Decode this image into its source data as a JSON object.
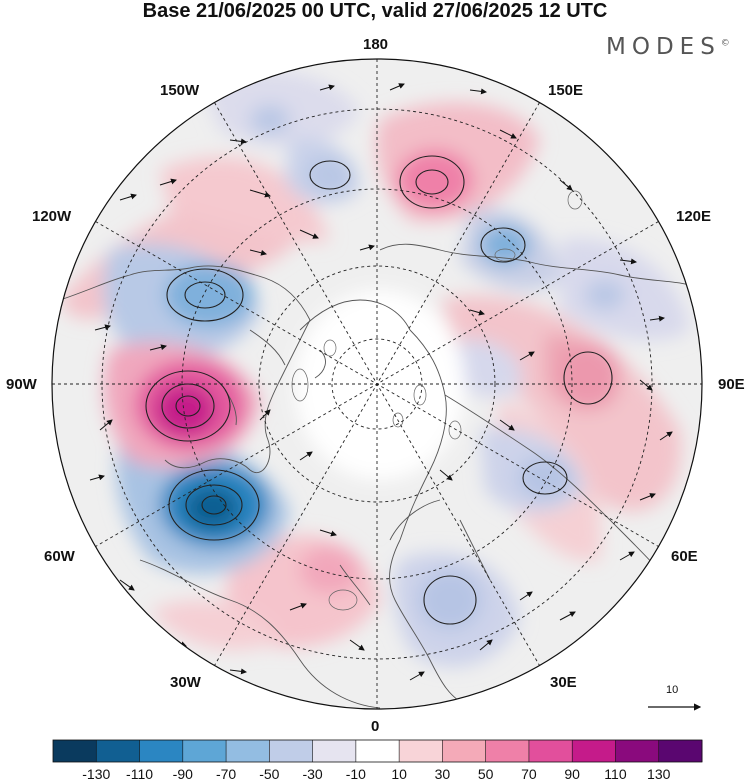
{
  "title": "Base 21/06/2025 00 UTC, valid 27/06/2025 12 UTC",
  "brand": {
    "name": "MODES",
    "mark": "©"
  },
  "longitude_labels": {
    "top": "180",
    "bottom": "0",
    "left": "90W",
    "right": "90E",
    "upper_left_1": "150W",
    "upper_left_2": "120W",
    "upper_right_1": "150E",
    "upper_right_2": "120E",
    "lower_left_1": "60W",
    "lower_left_2": "30W",
    "lower_right_1": "60E",
    "lower_right_2": "30E"
  },
  "reference_vector": {
    "label": "10"
  },
  "colorbar": {
    "ticks": [
      "-130",
      "-110",
      "-90",
      "-70",
      "-50",
      "-30",
      "-10",
      "10",
      "30",
      "50",
      "70",
      "90",
      "110",
      "130"
    ],
    "colors": [
      "#0a3a5e",
      "#115f92",
      "#2b86c2",
      "#5ea6d6",
      "#93bde2",
      "#c0cde8",
      "#e6e4f0",
      "#ffffff",
      "#f8d4d8",
      "#f4aab8",
      "#ef80a8",
      "#e24f9c",
      "#c51b8a",
      "#8a0a7d",
      "#5a0670"
    ]
  },
  "anomaly_features": [
    {
      "name": "strong-positive-anomaly-center",
      "sign": "positive",
      "level": 90
    },
    {
      "name": "strong-negative-anomaly-center",
      "sign": "negative",
      "level": -90
    },
    {
      "name": "negative-anomaly-center",
      "sign": "negative",
      "level": -50
    },
    {
      "name": "positive-anomaly-center",
      "sign": "positive",
      "level": 50
    },
    {
      "name": "negative-anomaly-center",
      "sign": "negative",
      "level": -50
    },
    {
      "name": "positive-anomaly-center",
      "sign": "positive",
      "level": 30
    },
    {
      "name": "negative-anomaly-center",
      "sign": "negative",
      "level": -30
    },
    {
      "name": "negative-anomaly-center",
      "sign": "negative",
      "level": -30
    },
    {
      "name": "positive-anomaly-center",
      "sign": "positive",
      "level": 30
    }
  ]
}
